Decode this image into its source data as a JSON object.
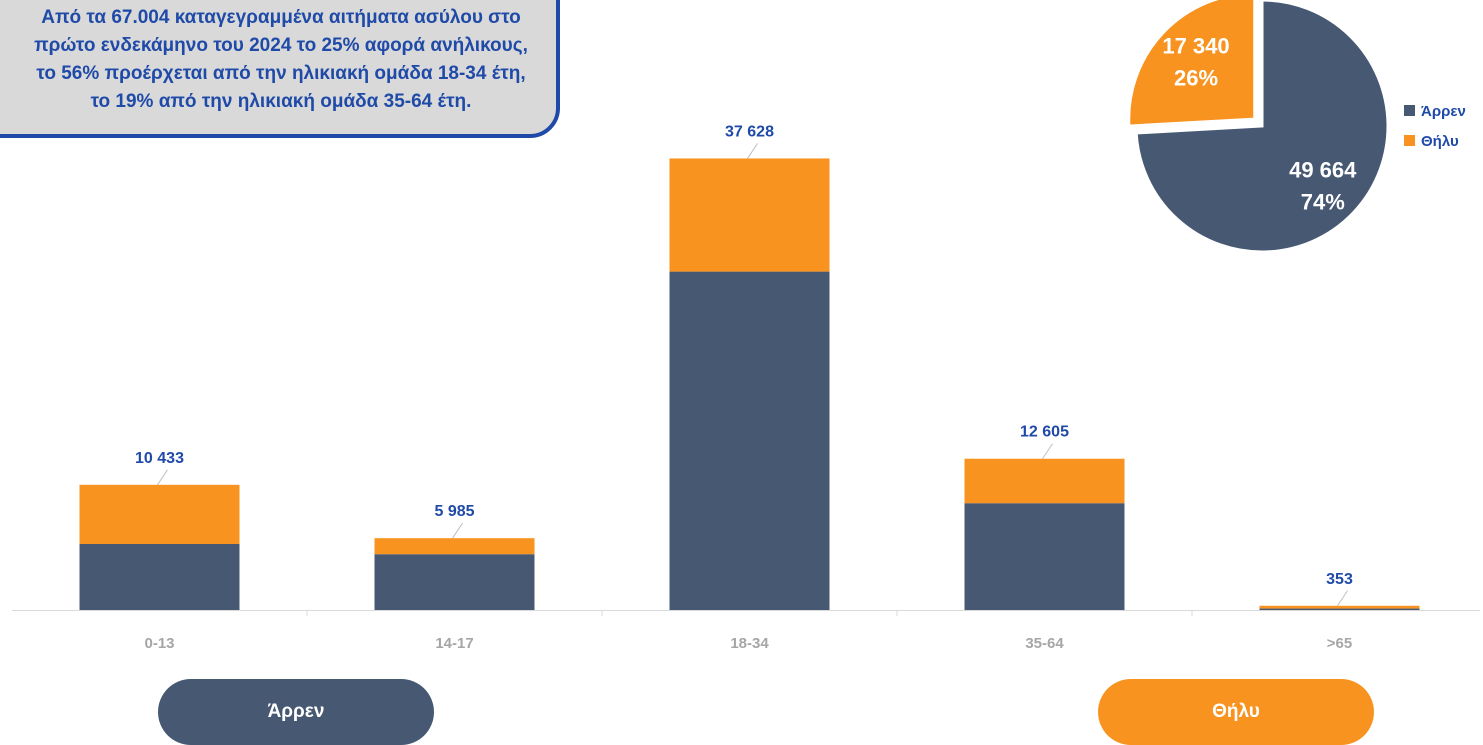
{
  "callout": {
    "text": "Από τα 67.004 καταγεγραμμένα αιτήματα ασύλου στο πρώτο ενδεκάμηνο του 2024 το 25% αφορά ανήλικους, το 56% προέρχεται από την ηλικιακή ομάδα 18-34 έτη, το 19% από την ηλικιακή ομάδα 35-64 έτη."
  },
  "colors": {
    "male": "#475873",
    "female": "#f7931e",
    "label": "#1f4aa8",
    "axis_text": "#a6a6a6"
  },
  "chart_data": [
    {
      "type": "bar",
      "stacked": true,
      "categories": [
        "0-13",
        "14-17",
        "18-34",
        "35-64",
        ">65"
      ],
      "totals": [
        10433,
        5985,
        37628,
        12605,
        353
      ],
      "total_labels": [
        "10 433",
        "5 985",
        "37 628",
        "12 605",
        "353"
      ],
      "series": [
        {
          "name": "Άρρεν",
          "values": [
            5500,
            4650,
            28200,
            8900,
            120
          ]
        },
        {
          "name": "Θήλυ",
          "values": [
            4933,
            1335,
            9428,
            3705,
            233
          ]
        }
      ],
      "ylim": [
        0,
        40000
      ],
      "grid": false
    },
    {
      "type": "pie",
      "labels": [
        "Άρρεν",
        "Θήλυ"
      ],
      "values": [
        49664,
        17340
      ],
      "value_labels": [
        "49 664",
        "17 340"
      ],
      "percent_labels": [
        "74%",
        "26%"
      ],
      "legend": "right"
    }
  ],
  "buttons": {
    "male_label": "Άρρεν",
    "female_label": "Θήλυ"
  }
}
